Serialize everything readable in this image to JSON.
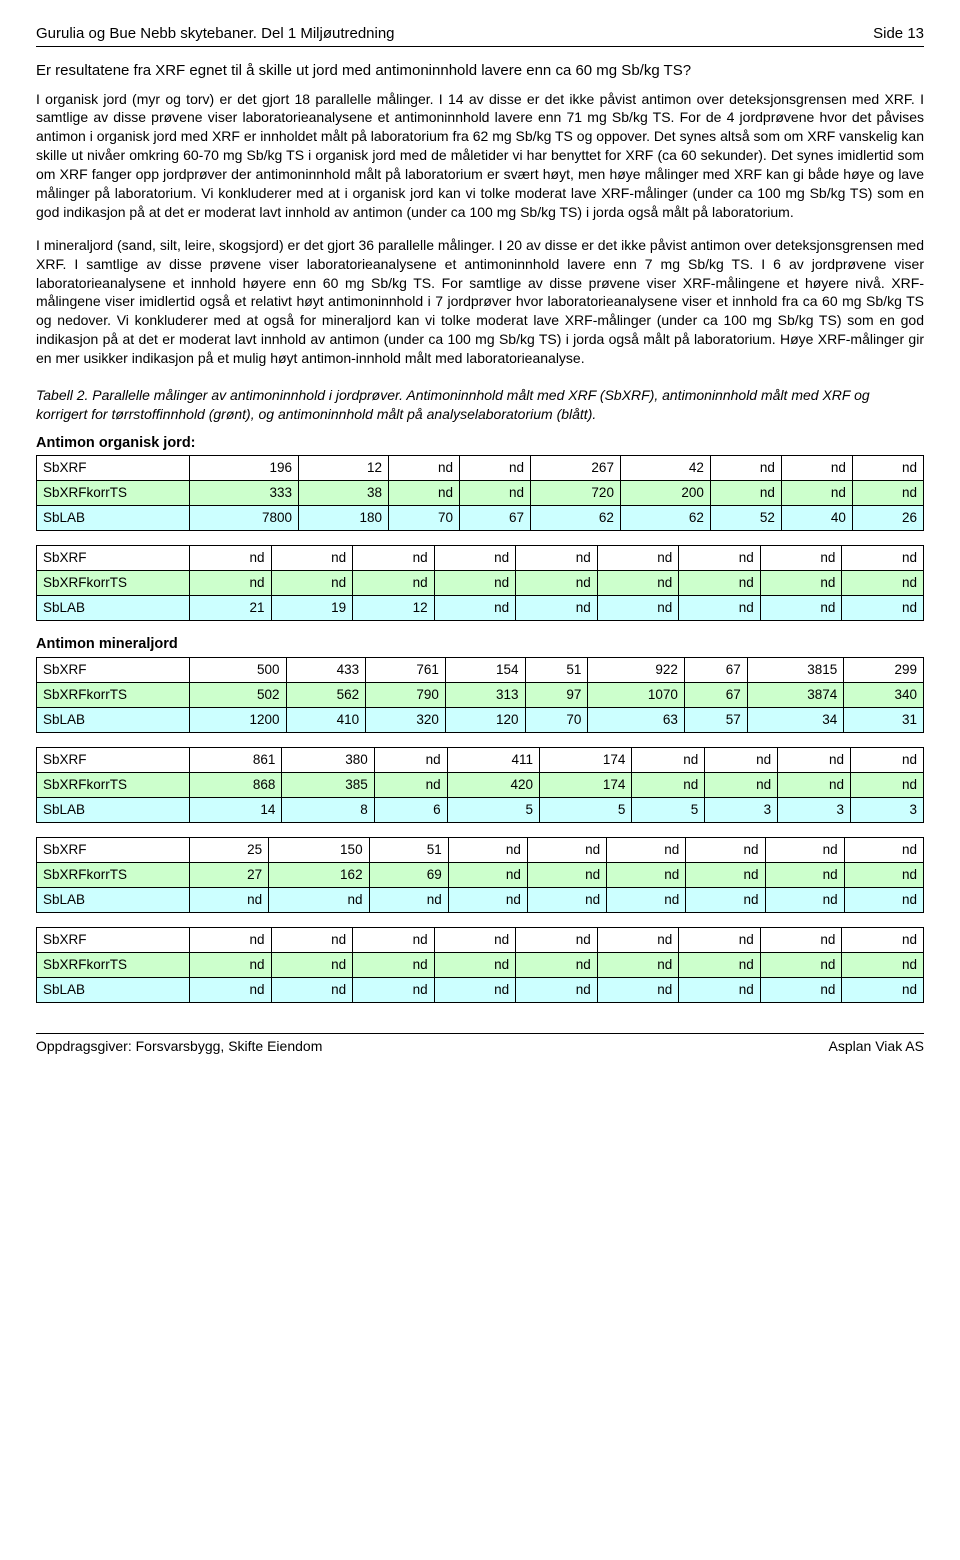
{
  "header": {
    "left": "Gurulia og Bue Nebb skytebaner. Del 1 Miljøutredning",
    "right": "Side 13"
  },
  "question": "Er resultatene fra XRF egnet til å skille ut jord med antimoninnhold lavere enn ca 60 mg Sb/kg TS?",
  "para1": "I organisk jord (myr og torv) er det gjort 18 parallelle målinger. I 14 av disse er det ikke påvist antimon over deteksjonsgrensen med XRF. I samtlige av disse prøvene viser laboratorieanalysene et antimoninnhold lavere enn 71 mg Sb/kg TS. For de 4 jordprøvene hvor det påvises antimon i organisk jord med XRF er innholdet målt på laboratorium fra 62 mg Sb/kg TS og oppover. Det synes altså som om XRF vanskelig kan skille ut nivåer omkring 60-70 mg Sb/kg TS i organisk jord med de måletider vi har benyttet for XRF (ca 60 sekunder). Det synes imidlertid som om XRF fanger opp jordprøver der antimoninnhold målt på laboratorium er svært høyt, men høye målinger med XRF kan gi både høye og lave målinger på laboratorium. Vi konkluderer med at i organisk jord kan vi tolke moderat lave XRF-målinger (under ca 100 mg Sb/kg TS) som en god indikasjon på at det er moderat lavt innhold av antimon (under ca 100 mg Sb/kg TS) i jorda også målt på laboratorium.",
  "para2": "I mineraljord (sand, silt, leire, skogsjord) er det gjort 36 parallelle målinger. I 20 av disse er det ikke påvist antimon over deteksjonsgrensen med XRF. I samtlige av disse prøvene viser laboratorieanalysene et antimoninnhold lavere enn 7 mg Sb/kg TS. I 6 av jordprøvene viser laboratorieanalysene et innhold høyere enn 60 mg Sb/kg TS. For samtlige av disse prøvene viser XRF-målingene et høyere nivå. XRF-målingene viser imidlertid også et relativt høyt antimoninnhold i 7 jordprøver hvor laboratorieanalysene viser et innhold fra ca 60 mg Sb/kg TS og nedover. Vi konkluderer med at også for mineraljord kan vi tolke moderat lave XRF-målinger (under ca 100 mg Sb/kg TS) som en god indikasjon på at det er moderat lavt innhold av antimon (under ca 100 mg Sb/kg TS) i jorda også målt på laboratorium. Høye XRF-målinger gir en mer usikker indikasjon på et mulig høyt antimon-innhold målt med laboratorieanalyse.",
  "caption": "Tabell 2. Parallelle målinger av antimoninnhold i jordprøver. Antimoninnhold målt med XRF (SbXRF), antimoninnhold målt med XRF og korrigert for tørrstoffinnhold (grønt), og antimoninnhold målt på analyselaboratorium (blått).",
  "section_organic": "Antimon organisk jord:",
  "section_mineral": "Antimon mineraljord",
  "rowLabels": {
    "xrf": "SbXRF",
    "korr": "SbXRFkorrTS",
    "lab": "SbLAB"
  },
  "tables": [
    {
      "titleKey": "section_organic",
      "rows": [
        {
          "label": "xrf",
          "class": "white",
          "cells": [
            "196",
            "12",
            "nd",
            "nd",
            "267",
            "42",
            "nd",
            "nd",
            "nd"
          ]
        },
        {
          "label": "korr",
          "class": "green",
          "cells": [
            "333",
            "38",
            "nd",
            "nd",
            "720",
            "200",
            "nd",
            "nd",
            "nd"
          ]
        },
        {
          "label": "lab",
          "class": "blue",
          "cells": [
            "7800",
            "180",
            "70",
            "67",
            "62",
            "62",
            "52",
            "40",
            "26"
          ]
        }
      ]
    },
    {
      "rows": [
        {
          "label": "xrf",
          "class": "white",
          "cells": [
            "nd",
            "nd",
            "nd",
            "nd",
            "nd",
            "nd",
            "nd",
            "nd",
            "nd"
          ]
        },
        {
          "label": "korr",
          "class": "green",
          "cells": [
            "nd",
            "nd",
            "nd",
            "nd",
            "nd",
            "nd",
            "nd",
            "nd",
            "nd"
          ]
        },
        {
          "label": "lab",
          "class": "blue",
          "cells": [
            "21",
            "19",
            "12",
            "nd",
            "nd",
            "nd",
            "nd",
            "nd",
            "nd"
          ]
        }
      ]
    },
    {
      "titleKey": "section_mineral",
      "rows": [
        {
          "label": "xrf",
          "class": "white",
          "cells": [
            "500",
            "433",
            "761",
            "154",
            "51",
            "922",
            "67",
            "3815",
            "299"
          ]
        },
        {
          "label": "korr",
          "class": "green",
          "cells": [
            "502",
            "562",
            "790",
            "313",
            "97",
            "1070",
            "67",
            "3874",
            "340"
          ]
        },
        {
          "label": "lab",
          "class": "blue",
          "cells": [
            "1200",
            "410",
            "320",
            "120",
            "70",
            "63",
            "57",
            "34",
            "31"
          ]
        }
      ]
    },
    {
      "rows": [
        {
          "label": "xrf",
          "class": "white",
          "cells": [
            "861",
            "380",
            "nd",
            "411",
            "174",
            "nd",
            "nd",
            "nd",
            "nd"
          ]
        },
        {
          "label": "korr",
          "class": "green",
          "cells": [
            "868",
            "385",
            "nd",
            "420",
            "174",
            "nd",
            "nd",
            "nd",
            "nd"
          ]
        },
        {
          "label": "lab",
          "class": "blue",
          "cells": [
            "14",
            "8",
            "6",
            "5",
            "5",
            "5",
            "3",
            "3",
            "3"
          ]
        }
      ]
    },
    {
      "rows": [
        {
          "label": "xrf",
          "class": "white",
          "cells": [
            "25",
            "150",
            "51",
            "nd",
            "nd",
            "nd",
            "nd",
            "nd",
            "nd"
          ]
        },
        {
          "label": "korr",
          "class": "green",
          "cells": [
            "27",
            "162",
            "69",
            "nd",
            "nd",
            "nd",
            "nd",
            "nd",
            "nd"
          ]
        },
        {
          "label": "lab",
          "class": "blue",
          "cells": [
            "nd",
            "nd",
            "nd",
            "nd",
            "nd",
            "nd",
            "nd",
            "nd",
            "nd"
          ]
        }
      ]
    },
    {
      "rows": [
        {
          "label": "xrf",
          "class": "white",
          "cells": [
            "nd",
            "nd",
            "nd",
            "nd",
            "nd",
            "nd",
            "nd",
            "nd",
            "nd"
          ]
        },
        {
          "label": "korr",
          "class": "green",
          "cells": [
            "nd",
            "nd",
            "nd",
            "nd",
            "nd",
            "nd",
            "nd",
            "nd",
            "nd"
          ]
        },
        {
          "label": "lab",
          "class": "blue",
          "cells": [
            "nd",
            "nd",
            "nd",
            "nd",
            "nd",
            "nd",
            "nd",
            "nd",
            "nd"
          ]
        }
      ]
    }
  ],
  "footer": {
    "left": "Oppdragsgiver: Forsvarsbygg, Skifte Eiendom",
    "right": "Asplan Viak AS"
  }
}
